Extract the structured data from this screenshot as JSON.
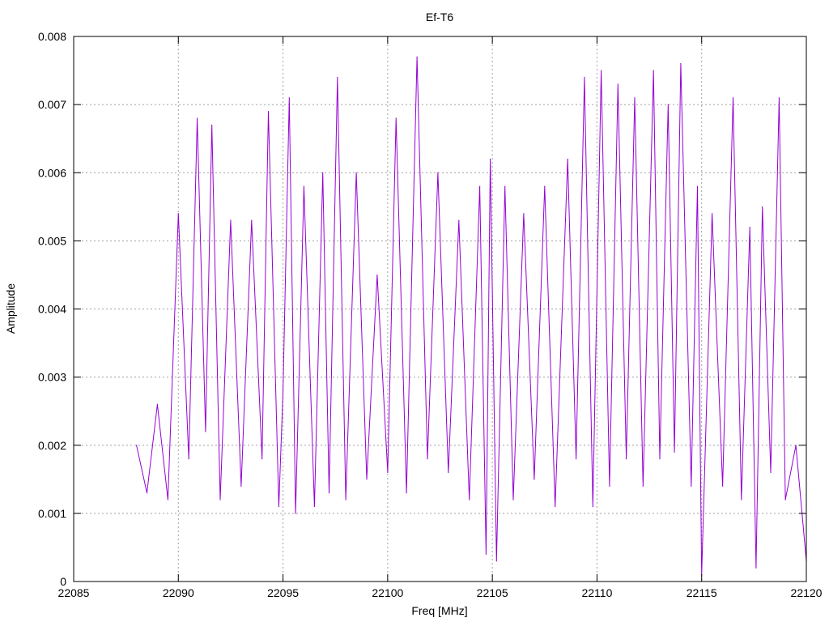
{
  "chart_data": {
    "type": "line",
    "title": "Ef-T6",
    "xlabel": "Freq [MHz]",
    "ylabel": "Amplitude",
    "xlim": [
      22085,
      22120
    ],
    "ylim": [
      0,
      0.008
    ],
    "xticks": [
      22085,
      22090,
      22095,
      22100,
      22105,
      22110,
      22115,
      22120
    ],
    "yticks": [
      0,
      0.001,
      0.002,
      0.003,
      0.004,
      0.005,
      0.006,
      0.007,
      0.008
    ],
    "xtick_labels": [
      "22085",
      "22090",
      "22095",
      "22100",
      "22105",
      "22110",
      "22115",
      "22120"
    ],
    "ytick_labels": [
      "0",
      "0.001",
      "0.002",
      "0.003",
      "0.004",
      "0.005",
      "0.006",
      "0.007",
      "0.008"
    ],
    "grid": true,
    "line_color": "#9400d3",
    "series": [
      {
        "name": "",
        "x": [
          22088.0,
          22088.5,
          22089.0,
          22089.5,
          22090.0,
          22090.5,
          22090.9,
          22091.3,
          22091.6,
          22092.0,
          22092.5,
          22093.0,
          22093.5,
          22094.0,
          22094.3,
          22094.8,
          22095.0,
          22095.3,
          22095.6,
          22096.0,
          22096.5,
          22096.9,
          22097.2,
          22097.6,
          22098.0,
          22098.5,
          22099.0,
          22099.5,
          22100.0,
          22100.4,
          22100.9,
          22101.4,
          22101.9,
          22102.4,
          22102.9,
          22103.4,
          22103.9,
          22104.4,
          22104.7,
          22104.9,
          22105.2,
          22105.6,
          22106.0,
          22106.5,
          22107.0,
          22107.5,
          22108.0,
          22108.6,
          22109.0,
          22109.4,
          22109.8,
          22110.2,
          22110.6,
          22111.0,
          22111.4,
          22111.8,
          22112.2,
          22112.7,
          22113.0,
          22113.4,
          22113.7,
          22114.0,
          22114.5,
          22114.8,
          22115.0,
          22115.5,
          22116.0,
          22116.5,
          22116.9,
          22117.3,
          22117.6,
          22117.9,
          22118.3,
          22118.7,
          22119.0,
          22119.5,
          22120.0
        ],
        "y": [
          0.002,
          0.0013,
          0.0026,
          0.0012,
          0.0054,
          0.0018,
          0.0068,
          0.0022,
          0.0067,
          0.0012,
          0.0053,
          0.0014,
          0.0053,
          0.0018,
          0.0069,
          0.0011,
          0.0028,
          0.0071,
          0.001,
          0.0058,
          0.0011,
          0.006,
          0.0013,
          0.0074,
          0.0012,
          0.006,
          0.0015,
          0.0045,
          0.0016,
          0.0068,
          0.0013,
          0.0077,
          0.0018,
          0.006,
          0.0016,
          0.0053,
          0.0012,
          0.0058,
          0.0004,
          0.0062,
          0.0003,
          0.0058,
          0.0012,
          0.0054,
          0.0015,
          0.0058,
          0.0011,
          0.0062,
          0.0018,
          0.0074,
          0.0011,
          0.0075,
          0.0014,
          0.0073,
          0.0018,
          0.0071,
          0.0014,
          0.0075,
          0.0018,
          0.007,
          0.0019,
          0.0076,
          0.0014,
          0.0058,
          0.0001,
          0.0054,
          0.0014,
          0.0071,
          0.0012,
          0.0052,
          0.0002,
          0.0055,
          0.0016,
          0.0071,
          0.0012,
          0.002,
          0.0003
        ]
      }
    ]
  }
}
